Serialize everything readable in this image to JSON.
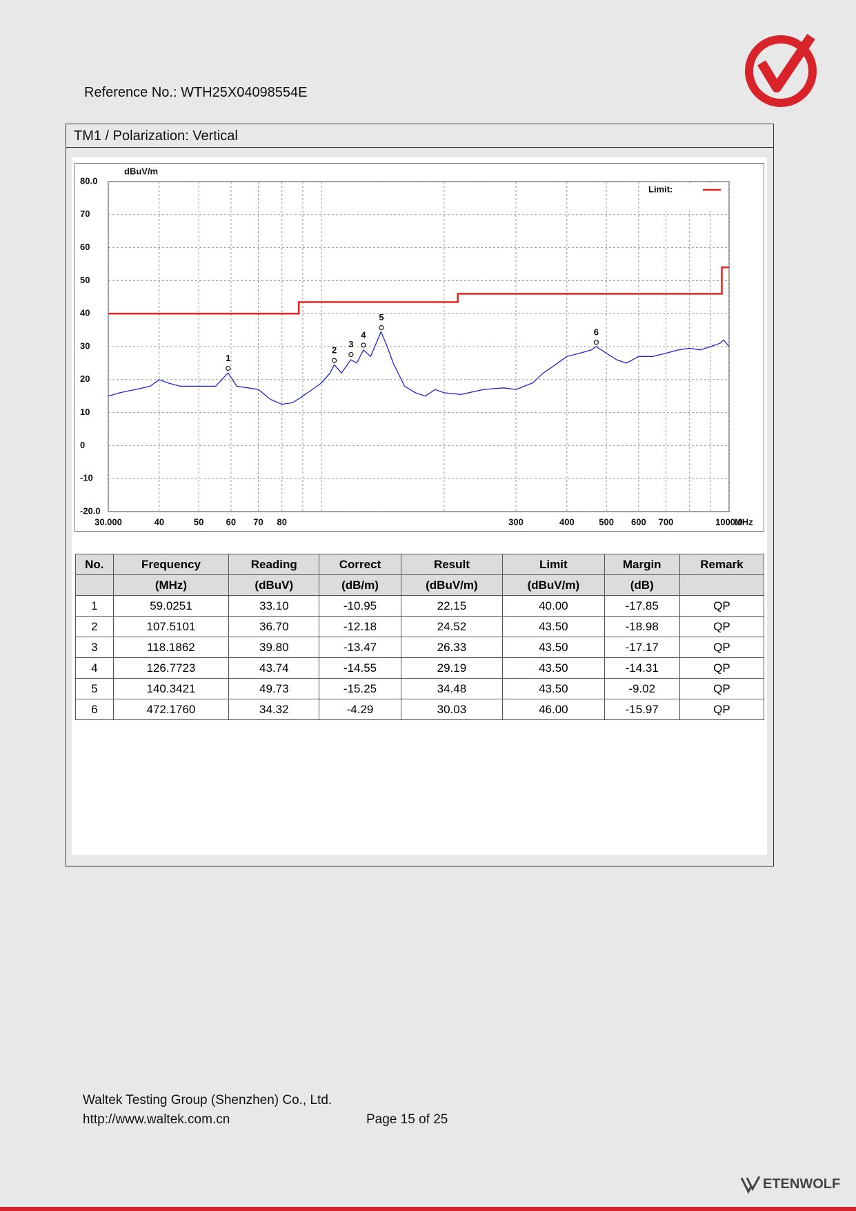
{
  "header": {
    "reference": "Reference No.: WTH25X04098554E"
  },
  "section": {
    "title": "TM1 / Polarization: Vertical"
  },
  "chart_data": {
    "type": "line",
    "x_scale": "log",
    "y_unit": "dBuV/m",
    "x_unit": "MHz",
    "xlim": [
      30,
      1000
    ],
    "ylim": [
      -20,
      80
    ],
    "xticks": [
      {
        "value": 30,
        "label": "30.000"
      },
      40,
      50,
      60,
      70,
      80,
      {
        "value": 90,
        "label": null
      },
      {
        "value": 100,
        "label": null
      },
      {
        "value": 200,
        "label": null
      },
      300,
      400,
      500,
      600,
      700,
      {
        "value": 800,
        "label": null
      },
      {
        "value": 900,
        "label": null
      },
      {
        "value": 1000,
        "label": "1000.0"
      }
    ],
    "yticks": [
      {
        "value": -20,
        "label": "-20.0"
      },
      -10,
      0,
      10,
      20,
      30,
      40,
      50,
      60,
      70,
      {
        "value": 80,
        "label": "80.0"
      }
    ],
    "grid": true,
    "legend": "upper right",
    "series": [
      {
        "name": "Limit:",
        "color": "#e8211d",
        "x": [
          30,
          88,
          88,
          216,
          216,
          960,
          960,
          1000
        ],
        "values": [
          40,
          40,
          43.5,
          43.5,
          46,
          46,
          54,
          54
        ]
      },
      {
        "color": "#1f22d2",
        "x": [
          30,
          32,
          35,
          38,
          40,
          42,
          45,
          50,
          55,
          59,
          62,
          66,
          70,
          75,
          80,
          85,
          90,
          95,
          100,
          105,
          107.5,
          112,
          118,
          122,
          126.8,
          132,
          140,
          145,
          150,
          160,
          170,
          180,
          190,
          200,
          220,
          250,
          280,
          300,
          330,
          350,
          370,
          400,
          430,
          460,
          472,
          500,
          530,
          560,
          600,
          650,
          700,
          750,
          800,
          850,
          900,
          950,
          970,
          1000
        ],
        "values": [
          15,
          16,
          17,
          18,
          20,
          19,
          18,
          18,
          18,
          22,
          18,
          17.5,
          17,
          14,
          12.5,
          13,
          15,
          17,
          19,
          22,
          24.5,
          22,
          26,
          25,
          29,
          27,
          34.5,
          30,
          25,
          18,
          16,
          15,
          17,
          16,
          15.5,
          17,
          17.5,
          17,
          19,
          22,
          24,
          27,
          28,
          29,
          30,
          28,
          26,
          25,
          27,
          27,
          28,
          29,
          29.5,
          29,
          30,
          31,
          32,
          30
        ]
      }
    ],
    "markers": {
      "labels": [
        "1",
        "2",
        "3",
        "4",
        "5",
        "6"
      ],
      "x": [
        59.0251,
        107.5101,
        118.1862,
        126.7723,
        140.3421,
        472.176
      ],
      "values": [
        22.15,
        24.52,
        26.33,
        29.19,
        34.48,
        30.03
      ]
    }
  },
  "table": {
    "header": [
      [
        "No.",
        "Frequency",
        "Reading",
        "Correct",
        "Result",
        "Limit",
        "Margin",
        "Remark"
      ],
      [
        null,
        "(MHz)",
        "(dBuV)",
        "(dB/m)",
        "(dBuV/m)",
        "(dBuV/m)",
        "(dB)",
        null
      ]
    ],
    "rows": [
      [
        "1",
        "59.0251",
        "33.10",
        "-10.95",
        "22.15",
        "40.00",
        "-17.85",
        "QP"
      ],
      [
        "2",
        "107.5101",
        "36.70",
        "-12.18",
        "24.52",
        "43.50",
        "-18.98",
        "QP"
      ],
      [
        "3",
        "118.1862",
        "39.80",
        "-13.47",
        "26.33",
        "43.50",
        "-17.17",
        "QP"
      ],
      [
        "4",
        "126.7723",
        "43.74",
        "-14.55",
        "29.19",
        "43.50",
        "-14.31",
        "QP"
      ],
      [
        "5",
        "140.3421",
        "49.73",
        "-15.25",
        "34.48",
        "43.50",
        "-9.02",
        "QP"
      ],
      [
        "6",
        "472.1760",
        "34.32",
        "-4.29",
        "30.03",
        "46.00",
        "-15.97",
        "QP"
      ]
    ]
  },
  "footer": {
    "company": "Waltek Testing Group (Shenzhen) Co., Ltd.",
    "url": "http://www.waltek.com.cn",
    "page": "Page 15 of 25",
    "brand": "ETENWOLF"
  }
}
